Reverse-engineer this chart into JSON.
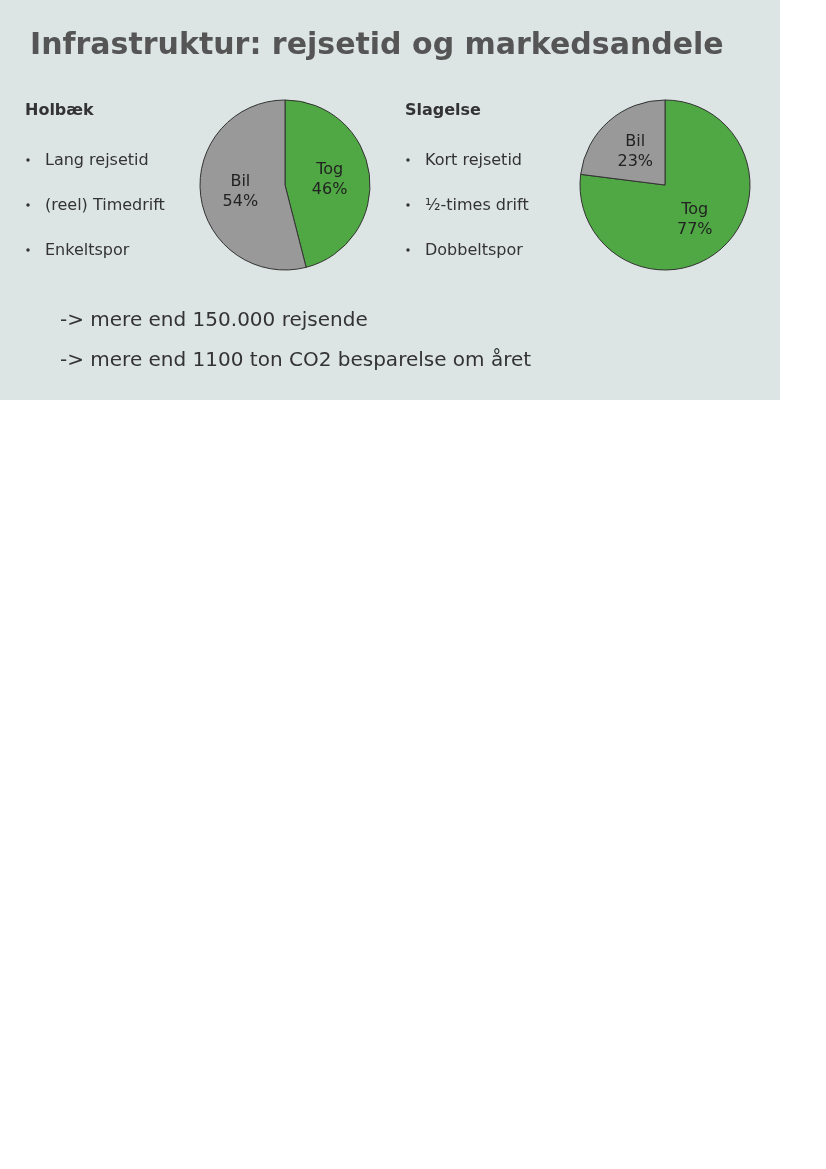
{
  "chart_data": [
    {
      "type": "other",
      "title": "Infrastruktur: rejsetid og markedsandele",
      "annotations": [
        "-> mere end 150.000 rejsende",
        "-> mere end 1100 ton CO2 besparelse om året"
      ]
    },
    {
      "type": "pie",
      "title": "Holbæk",
      "annotations": [
        "Lang rejsetid",
        "(reel) Timedrift",
        "Enkeltspor"
      ],
      "categories": [
        "Tog",
        "Bil"
      ],
      "values": [
        46,
        54
      ],
      "value_labels": [
        "46%",
        "54%"
      ],
      "colors": [
        "#4fa843",
        "#999999"
      ]
    },
    {
      "type": "pie",
      "title": "Slagelse",
      "annotations": [
        "Kort rejsetid",
        "½-times drift",
        "Dobbeltspor"
      ],
      "categories": [
        "Tog",
        "Bil"
      ],
      "values": [
        77,
        23
      ],
      "value_labels": [
        "77%",
        "23%"
      ],
      "colors": [
        "#4fa843",
        "#999999"
      ]
    }
  ]
}
